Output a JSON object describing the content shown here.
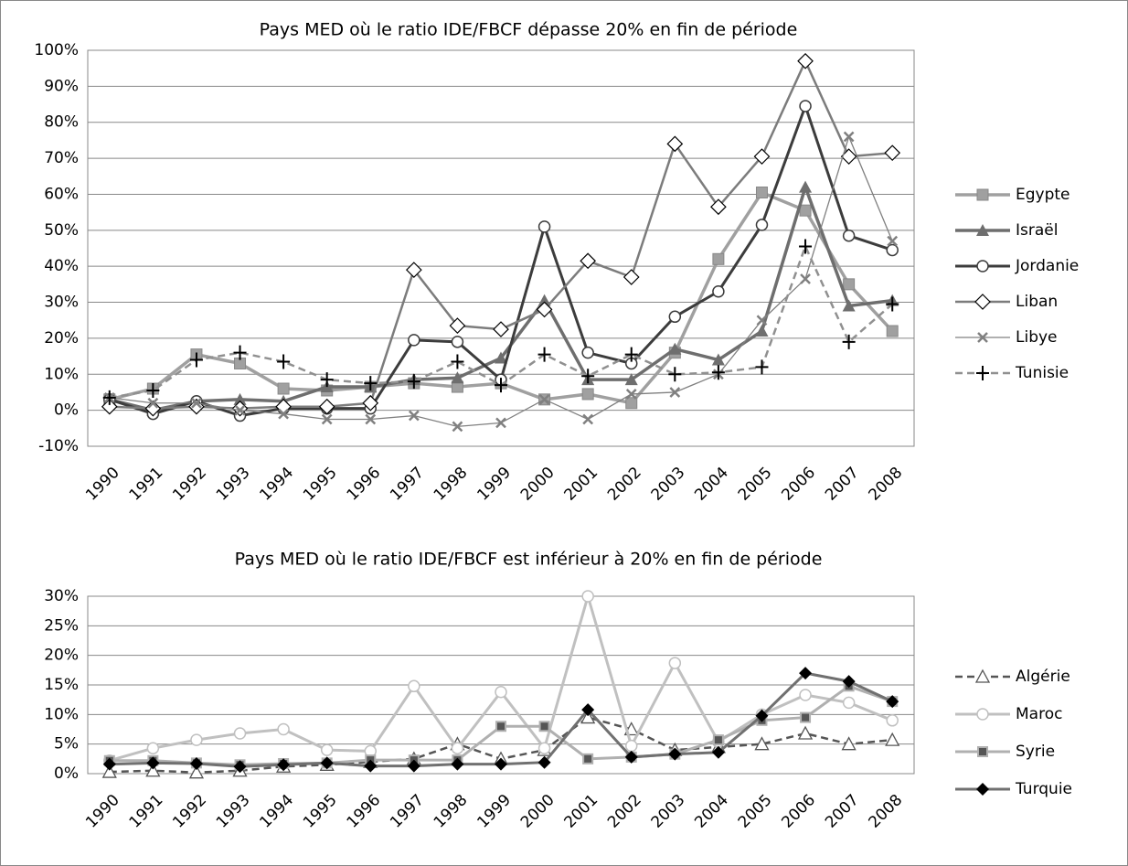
{
  "chart_data": [
    {
      "type": "line",
      "title": "Pays MED où le ratio IDE/FBCF dépasse 20% en fin de période",
      "categories": [
        "1990",
        "1991",
        "1992",
        "1993",
        "1994",
        "1995",
        "1996",
        "1997",
        "1998",
        "1999",
        "2000",
        "2001",
        "2002",
        "2003",
        "2004",
        "2005",
        "2006",
        "2007",
        "2008"
      ],
      "ylim": [
        -10,
        100
      ],
      "yticks": [
        {
          "value": -10,
          "label": "-10%"
        },
        {
          "value": 0,
          "label": "0%"
        },
        {
          "value": 10,
          "label": "10%"
        },
        {
          "value": 20,
          "label": "20%"
        },
        {
          "value": 30,
          "label": "30%"
        },
        {
          "value": 40,
          "label": "40%"
        },
        {
          "value": 50,
          "label": "50%"
        },
        {
          "value": 60,
          "label": "60%"
        },
        {
          "value": 70,
          "label": "70%"
        },
        {
          "value": 80,
          "label": "80%"
        },
        {
          "value": 90,
          "label": "90%"
        },
        {
          "value": 100,
          "label": "100%"
        }
      ],
      "grid": true,
      "legend": "right",
      "series": [
        {
          "name": "Egypte",
          "color": "#a0a0a0",
          "marker": "square",
          "dash": false,
          "width": 3.5,
          "values": [
            3,
            6,
            15.5,
            13,
            6,
            5.5,
            6.5,
            7.5,
            6.5,
            7.5,
            3,
            4.5,
            2,
            16,
            42,
            60.5,
            55.5,
            35,
            22
          ]
        },
        {
          "name": "Israël",
          "color": "#6e6e6e",
          "marker": "triangle",
          "dash": false,
          "width": 3.5,
          "values": [
            3,
            0,
            2.5,
            3,
            2.5,
            6.5,
            6.5,
            8.5,
            9,
            14.5,
            30.5,
            8.5,
            8.5,
            17,
            14,
            22,
            62,
            29,
            30.5
          ]
        },
        {
          "name": "Jordanie",
          "color": "#3c3c3c",
          "marker": "circle",
          "dash": false,
          "width": 3,
          "values": [
            3,
            -1,
            2.5,
            -1.5,
            0.5,
            0.5,
            0.5,
            19.5,
            19,
            8.5,
            51,
            16,
            13,
            26,
            33,
            51.5,
            84.5,
            48.5,
            44.5
          ]
        },
        {
          "name": "Liban",
          "color": "#7c7c7c",
          "marker": "diamond",
          "dash": false,
          "width": 2.5,
          "values": [
            1,
            0.5,
            1,
            0.5,
            1,
            1,
            2,
            39,
            23.5,
            22.5,
            28,
            41.5,
            37,
            74,
            56.5,
            70.5,
            97,
            70.5,
            71.5
          ]
        },
        {
          "name": "Libye",
          "color": "#808080",
          "marker": "x",
          "dash": false,
          "width": 1.3,
          "values": [
            3.5,
            2,
            2,
            0,
            -1,
            -2.5,
            -2.5,
            -1.5,
            -4.5,
            -3.5,
            3,
            -2.5,
            4.5,
            5,
            10,
            25,
            36.5,
            76,
            47
          ]
        },
        {
          "name": "Tunisie",
          "color": "#909090",
          "marker": "plus",
          "dash": true,
          "width": 2.5,
          "values": [
            3.5,
            5.5,
            14,
            16,
            13.5,
            8.5,
            7.5,
            8,
            13.5,
            7,
            15.5,
            9.5,
            15.5,
            10,
            10.5,
            12,
            45.5,
            19,
            29.5
          ]
        }
      ]
    },
    {
      "type": "line",
      "title": "Pays MED où le ratio IDE/FBCF est inférieur à 20% en fin de période",
      "categories": [
        "1990",
        "1991",
        "1992",
        "1993",
        "1994",
        "1995",
        "1996",
        "1997",
        "1998",
        "1999",
        "2000",
        "2001",
        "2002",
        "2003",
        "2004",
        "2005",
        "2006",
        "2007",
        "2008"
      ],
      "ylim": [
        0,
        30
      ],
      "yticks": [
        {
          "value": 0,
          "label": "0%"
        },
        {
          "value": 5,
          "label": "5%"
        },
        {
          "value": 10,
          "label": "10%"
        },
        {
          "value": 15,
          "label": "15%"
        },
        {
          "value": 20,
          "label": "20%"
        },
        {
          "value": 25,
          "label": "25%"
        },
        {
          "value": 30,
          "label": "30%"
        }
      ],
      "grid": true,
      "legend": "right",
      "series": [
        {
          "name": "Algérie",
          "color": "#555555",
          "marker": "triangle-open",
          "dash": true,
          "width": 2.5,
          "values": [
            0.3,
            0.5,
            0.2,
            0.5,
            1.2,
            1.5,
            2,
            2.5,
            5,
            2.5,
            4,
            9.5,
            7.5,
            4,
            4.5,
            5,
            6.8,
            5,
            5.7
          ]
        },
        {
          "name": "Maroc",
          "color": "#c0c0c0",
          "marker": "circle",
          "dash": false,
          "width": 3,
          "values": [
            2.2,
            4.3,
            5.7,
            6.8,
            7.5,
            4,
            3.8,
            14.8,
            4.3,
            13.8,
            4.3,
            30,
            4.7,
            18.7,
            5.4,
            10,
            13.3,
            12,
            9
          ]
        },
        {
          "name": "Syrie",
          "color": "#b0b0b0",
          "marker": "square-small",
          "dash": false,
          "width": 3,
          "values": [
            2.2,
            2.2,
            1.8,
            1.5,
            1.7,
            1.8,
            2.3,
            2.3,
            2.3,
            8,
            8,
            2.5,
            2.8,
            3.3,
            5.7,
            9,
            9.5,
            14.8,
            12.2
          ]
        },
        {
          "name": "Turquie",
          "color": "#707070",
          "marker": "diamond-filled",
          "dash": false,
          "width": 3,
          "values": [
            1.6,
            1.8,
            1.7,
            1.2,
            1.5,
            1.8,
            1.3,
            1.3,
            1.6,
            1.6,
            1.9,
            10.8,
            2.8,
            3.3,
            3.6,
            9.8,
            17,
            15.6,
            12.2
          ]
        }
      ]
    }
  ]
}
